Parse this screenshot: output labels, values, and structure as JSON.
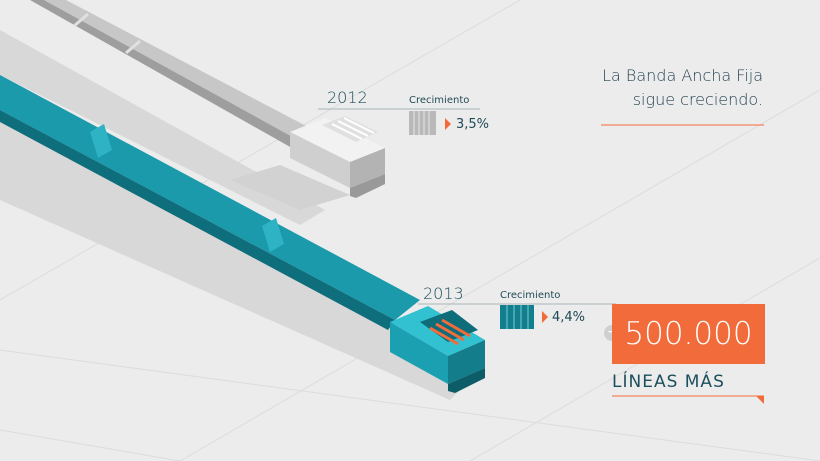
{
  "headline": {
    "line1": "La Banda Ancha Fija",
    "line2": "sigue creciendo."
  },
  "year_2012": {
    "year": "2012",
    "growth_label": "Crecimiento",
    "growth_value": "3,5%"
  },
  "year_2013": {
    "year": "2013",
    "growth_label": "Crecimiento",
    "growth_value": "4,4%"
  },
  "highlight": {
    "plus_sign": "+",
    "value": "500.000",
    "caption": "LÍNEAS MÁS"
  },
  "colors": {
    "accent": "#f26b3a",
    "teal": "#178f9f",
    "gray_cable": "#b8b8b8",
    "background": "#ececec"
  }
}
